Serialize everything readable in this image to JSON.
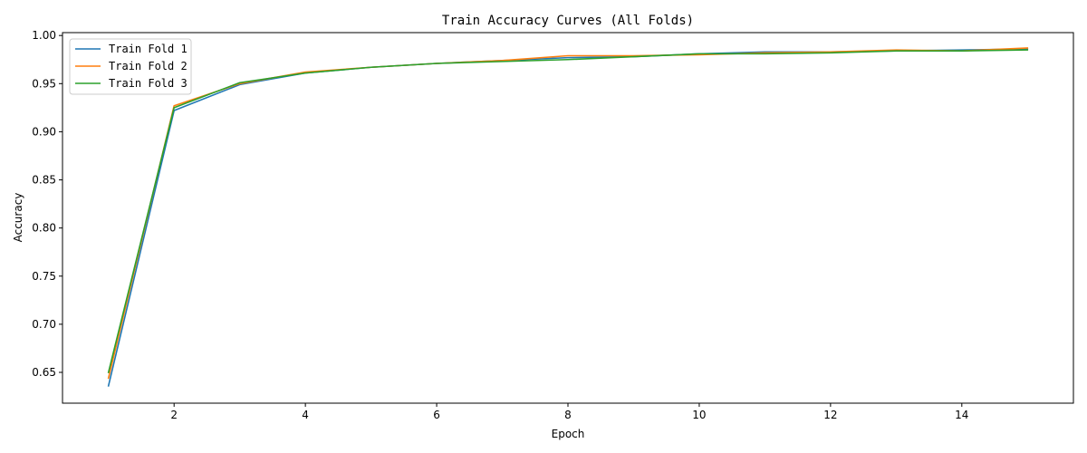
{
  "chart_data": {
    "type": "line",
    "title": "Train Accuracy Curves (All Folds)",
    "xlabel": "Epoch",
    "ylabel": "Accuracy",
    "xlim": [
      0.3,
      15.7
    ],
    "ylim": [
      0.618,
      1.003
    ],
    "xticks": [
      2,
      4,
      6,
      8,
      10,
      12,
      14
    ],
    "yticks": [
      0.65,
      0.7,
      0.75,
      0.8,
      0.85,
      0.9,
      0.95,
      1.0
    ],
    "ytick_labels": [
      "0.65",
      "0.70",
      "0.75",
      "0.80",
      "0.85",
      "0.90",
      "0.95",
      "1.00"
    ],
    "grid": false,
    "legend_position": "top-left",
    "x": [
      1,
      2,
      3,
      4,
      5,
      6,
      7,
      8,
      9,
      10,
      11,
      12,
      13,
      14,
      15
    ],
    "series": [
      {
        "name": "Train Fold 1",
        "color": "#1f77b4",
        "values": [
          0.636,
          0.922,
          0.949,
          0.961,
          0.967,
          0.971,
          0.974,
          0.977,
          0.978,
          0.981,
          0.983,
          0.983,
          0.984,
          0.985,
          0.986
        ]
      },
      {
        "name": "Train Fold 2",
        "color": "#ff7f0e",
        "values": [
          0.644,
          0.927,
          0.95,
          0.962,
          0.967,
          0.971,
          0.974,
          0.979,
          0.979,
          0.98,
          0.982,
          0.983,
          0.985,
          0.984,
          0.987
        ]
      },
      {
        "name": "Train Fold 3",
        "color": "#2ca02c",
        "values": [
          0.65,
          0.925,
          0.951,
          0.961,
          0.967,
          0.971,
          0.973,
          0.975,
          0.978,
          0.981,
          0.981,
          0.982,
          0.984,
          0.984,
          0.985
        ]
      }
    ]
  }
}
